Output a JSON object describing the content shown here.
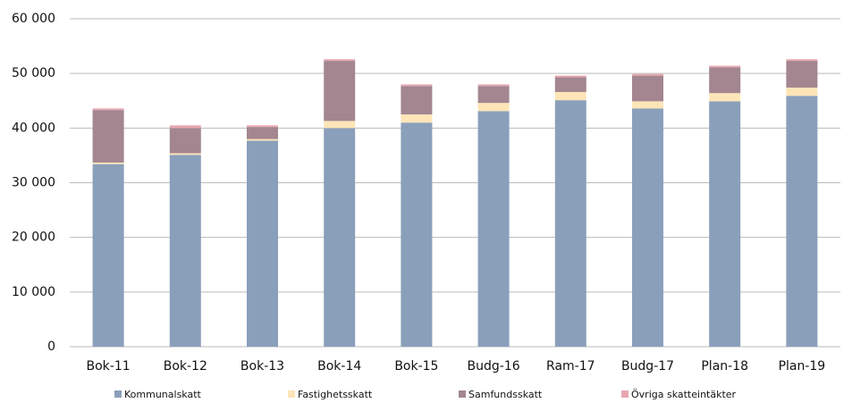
{
  "chart_data": {
    "type": "stacked_bar",
    "categories": [
      "Bok-11",
      "Bok-12",
      "Bok-13",
      "Bok-14",
      "Bok-15",
      "Budg-16",
      "Ram-17",
      "Budg-17",
      "Plan-18",
      "Plan-19"
    ],
    "series": [
      {
        "name": "Kommunalskatt",
        "color": "#8a9fba",
        "values": [
          33400,
          35100,
          37700,
          40000,
          41000,
          43100,
          45100,
          43600,
          44900,
          45900
        ]
      },
      {
        "name": "Fastighetsskatt",
        "color": "#fde5b7",
        "values": [
          300,
          300,
          300,
          1300,
          1500,
          1500,
          1500,
          1300,
          1500,
          1500
        ]
      },
      {
        "name": "Samfundsskatt",
        "color": "#a38690",
        "values": [
          9600,
          4600,
          2200,
          11000,
          5200,
          3100,
          2700,
          4700,
          4700,
          4900
        ]
      },
      {
        "name": "Övriga skatteintäkter",
        "color": "#e8a7b0",
        "values": [
          300,
          500,
          300,
          300,
          300,
          300,
          300,
          300,
          300,
          300
        ]
      }
    ],
    "ylim": [
      0,
      60000
    ],
    "yticks": [
      0,
      {
        "value": 10000,
        "label": "10 000"
      },
      {
        "value": 20000,
        "label": "20 000"
      },
      {
        "value": 30000,
        "label": "30 000"
      },
      {
        "value": 40000,
        "label": "40 000"
      },
      {
        "value": 50000,
        "label": "50 000"
      },
      {
        "value": 60000,
        "label": "60 000"
      }
    ],
    "grid": true,
    "legend": "bottom"
  }
}
